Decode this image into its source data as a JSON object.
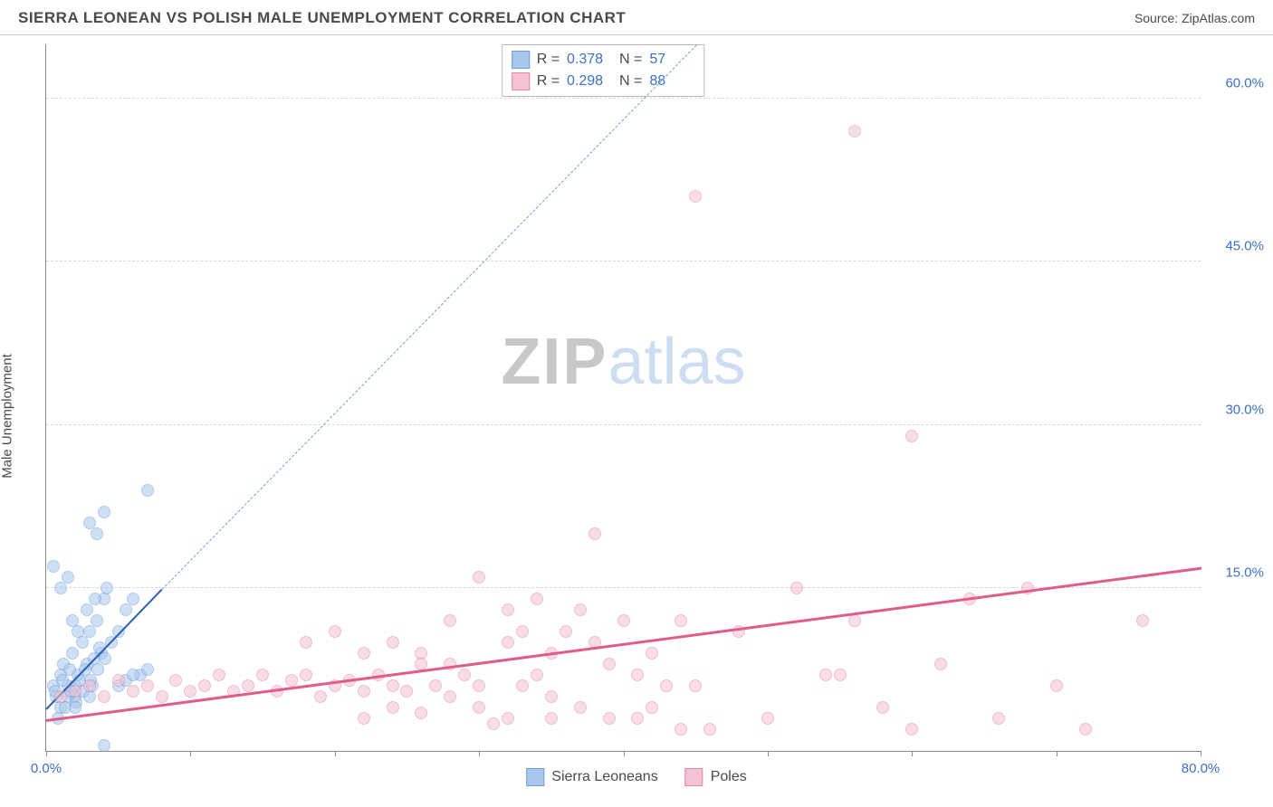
{
  "header": {
    "title": "SIERRA LEONEAN VS POLISH MALE UNEMPLOYMENT CORRELATION CHART",
    "source_prefix": "Source: ",
    "source_name": "ZipAtlas.com"
  },
  "ylabel": "Male Unemployment",
  "watermark": {
    "part1": "ZIP",
    "part2": "atlas"
  },
  "chart": {
    "type": "scatter",
    "xlim": [
      0,
      80
    ],
    "ylim": [
      0,
      65
    ],
    "yticks": [
      15,
      30,
      45,
      60
    ],
    "ytick_labels": [
      "15.0%",
      "30.0%",
      "45.0%",
      "60.0%"
    ],
    "xticks": [
      0,
      10,
      20,
      30,
      40,
      50,
      60,
      70,
      80
    ],
    "xtick_labels": {
      "0": "0.0%",
      "80": "80.0%"
    },
    "grid_color": "#d8d8d8",
    "axis_color": "#888888",
    "tick_label_color": "#3b6fc9",
    "background_color": "#ffffff",
    "marker_size": 14,
    "marker_opacity": 0.55,
    "series": [
      {
        "name": "Sierra Leoneans",
        "color_fill": "#a9c7ec",
        "color_stroke": "#6b9fe0",
        "R": "0.378",
        "N": "57",
        "trend_solid": {
          "x1": 0,
          "y1": 4,
          "x2": 8,
          "y2": 15,
          "color": "#2d5fb0",
          "width": 2
        },
        "trend_dashed": {
          "x1": 8,
          "y1": 15,
          "x2": 45,
          "y2": 65,
          "color": "#6b9fe0",
          "width": 1
        },
        "points": [
          [
            0.5,
            6
          ],
          [
            0.7,
            5
          ],
          [
            1,
            7
          ],
          [
            1.2,
            8
          ],
          [
            1.5,
            6
          ],
          [
            1.8,
            9
          ],
          [
            2,
            5
          ],
          [
            2.2,
            7
          ],
          [
            2.5,
            10
          ],
          [
            2.8,
            8
          ],
          [
            3,
            11
          ],
          [
            3.2,
            6
          ],
          [
            3.5,
            12
          ],
          [
            3.8,
            9
          ],
          [
            4,
            14
          ],
          [
            1,
            4
          ],
          [
            1.5,
            5
          ],
          [
            2,
            6
          ],
          [
            0.8,
            3
          ],
          [
            1.3,
            4
          ],
          [
            1.7,
            5.5
          ],
          [
            2.3,
            6.5
          ],
          [
            2.7,
            7.5
          ],
          [
            3.3,
            8.5
          ],
          [
            3.7,
            9.5
          ],
          [
            0.6,
            5.5
          ],
          [
            1.1,
            6.5
          ],
          [
            1.6,
            7.5
          ],
          [
            2.1,
            4.5
          ],
          [
            2.6,
            5.5
          ],
          [
            3.1,
            6.5
          ],
          [
            3.6,
            7.5
          ],
          [
            4.1,
            8.5
          ],
          [
            4.5,
            10
          ],
          [
            5,
            11
          ],
          [
            1.8,
            12
          ],
          [
            2.2,
            11
          ],
          [
            2.8,
            13
          ],
          [
            3.4,
            14
          ],
          [
            4.2,
            15
          ],
          [
            5.5,
            13
          ],
          [
            6,
            14
          ],
          [
            6.5,
            7
          ],
          [
            3,
            21
          ],
          [
            3.5,
            20
          ],
          [
            4,
            22
          ],
          [
            7,
            24
          ],
          [
            0.5,
            17
          ],
          [
            1,
            15
          ],
          [
            1.5,
            16
          ],
          [
            2,
            4
          ],
          [
            3,
            5
          ],
          [
            4,
            0.5
          ],
          [
            5,
            6
          ],
          [
            5.5,
            6.5
          ],
          [
            6,
            7
          ],
          [
            7,
            7.5
          ]
        ]
      },
      {
        "name": "Poles",
        "color_fill": "#f5c2d1",
        "color_stroke": "#e887a8",
        "R": "0.298",
        "N": "88",
        "trend_solid": {
          "x1": 0,
          "y1": 3,
          "x2": 80,
          "y2": 17,
          "color": "#e35b8a",
          "width": 2.5
        },
        "points": [
          [
            1,
            5
          ],
          [
            2,
            5.5
          ],
          [
            3,
            6
          ],
          [
            4,
            5
          ],
          [
            5,
            6.5
          ],
          [
            6,
            5.5
          ],
          [
            7,
            6
          ],
          [
            8,
            5
          ],
          [
            9,
            6.5
          ],
          [
            10,
            5.5
          ],
          [
            11,
            6
          ],
          [
            12,
            7
          ],
          [
            13,
            5.5
          ],
          [
            14,
            6
          ],
          [
            15,
            7
          ],
          [
            16,
            5.5
          ],
          [
            17,
            6.5
          ],
          [
            18,
            7
          ],
          [
            19,
            5
          ],
          [
            20,
            6
          ],
          [
            21,
            6.5
          ],
          [
            22,
            5.5
          ],
          [
            23,
            7
          ],
          [
            24,
            6
          ],
          [
            25,
            5.5
          ],
          [
            26,
            9
          ],
          [
            27,
            6
          ],
          [
            28,
            8
          ],
          [
            29,
            7
          ],
          [
            30,
            6
          ],
          [
            22,
            3
          ],
          [
            24,
            4
          ],
          [
            26,
            3.5
          ],
          [
            28,
            5
          ],
          [
            30,
            4
          ],
          [
            31,
            2.5
          ],
          [
            32,
            3
          ],
          [
            33,
            6
          ],
          [
            34,
            7
          ],
          [
            35,
            5
          ],
          [
            18,
            10
          ],
          [
            20,
            11
          ],
          [
            22,
            9
          ],
          [
            24,
            10
          ],
          [
            26,
            8
          ],
          [
            28,
            12
          ],
          [
            30,
            16
          ],
          [
            32,
            13
          ],
          [
            33,
            11
          ],
          [
            34,
            14
          ],
          [
            35,
            9
          ],
          [
            36,
            11
          ],
          [
            37,
            13
          ],
          [
            38,
            10
          ],
          [
            39,
            8
          ],
          [
            40,
            12
          ],
          [
            41,
            7
          ],
          [
            42,
            9
          ],
          [
            43,
            6
          ],
          [
            44,
            2
          ],
          [
            38,
            20
          ],
          [
            42,
            4
          ],
          [
            44,
            12
          ],
          [
            45,
            6
          ],
          [
            46,
            2
          ],
          [
            48,
            11
          ],
          [
            50,
            3
          ],
          [
            52,
            15
          ],
          [
            54,
            7
          ],
          [
            56,
            12
          ],
          [
            58,
            4
          ],
          [
            60,
            2
          ],
          [
            60,
            29
          ],
          [
            62,
            8
          ],
          [
            64,
            14
          ],
          [
            66,
            3
          ],
          [
            68,
            15
          ],
          [
            70,
            6
          ],
          [
            72,
            2
          ],
          [
            76,
            12
          ],
          [
            55,
            7
          ],
          [
            32,
            10
          ],
          [
            35,
            3
          ],
          [
            37,
            4
          ],
          [
            39,
            3
          ],
          [
            41,
            3
          ],
          [
            45,
            51
          ],
          [
            56,
            57
          ]
        ]
      }
    ]
  },
  "legend_top": [
    {
      "swatch_fill": "#a9c7ec",
      "swatch_stroke": "#6b9fe0",
      "r_label": "R =",
      "r_val": "0.378",
      "n_label": "N =",
      "n_val": "57"
    },
    {
      "swatch_fill": "#f5c2d1",
      "swatch_stroke": "#e887a8",
      "r_label": "R =",
      "r_val": "0.298",
      "n_label": "N =",
      "n_val": "88"
    }
  ],
  "legend_bottom": [
    {
      "swatch_fill": "#a9c7ec",
      "swatch_stroke": "#6b9fe0",
      "label": "Sierra Leoneans"
    },
    {
      "swatch_fill": "#f5c2d1",
      "swatch_stroke": "#e887a8",
      "label": "Poles"
    }
  ]
}
